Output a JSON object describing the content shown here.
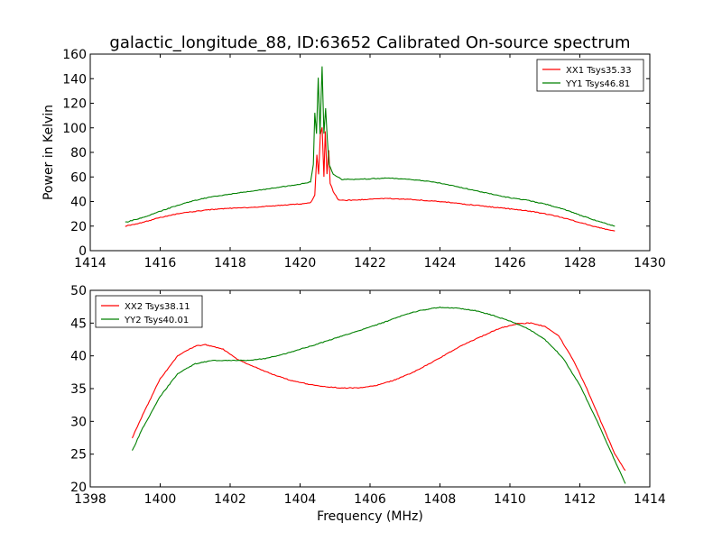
{
  "figure": {
    "title": "galactic_longitude_88, ID:63652 Calibrated On-source spectrum",
    "xlabel": "Frequency (MHz)"
  },
  "chart_data": [
    {
      "type": "line",
      "name": "top",
      "ylabel": "Power in Kelvin",
      "xlim": [
        1414,
        1430
      ],
      "ylim": [
        0,
        160
      ],
      "xticks": [
        1414,
        1416,
        1418,
        1420,
        1422,
        1424,
        1426,
        1428,
        1430
      ],
      "yticks": [
        0,
        20,
        40,
        60,
        80,
        100,
        120,
        140,
        160
      ],
      "legend": "top-right",
      "series": [
        {
          "name": "XX1 Tsys35.33",
          "color": "#ff0000",
          "points": [
            [
              1415.0,
              20
            ],
            [
              1415.5,
              23
            ],
            [
              1416.0,
              27
            ],
            [
              1416.5,
              30
            ],
            [
              1417.0,
              32
            ],
            [
              1417.5,
              33.5
            ],
            [
              1418.0,
              34.5
            ],
            [
              1418.5,
              35
            ],
            [
              1419.0,
              36
            ],
            [
              1419.5,
              37
            ],
            [
              1420.0,
              38
            ],
            [
              1420.3,
              39
            ],
            [
              1420.42,
              45
            ],
            [
              1420.48,
              78
            ],
            [
              1420.53,
              62
            ],
            [
              1420.58,
              95
            ],
            [
              1420.63,
              100
            ],
            [
              1420.68,
              60
            ],
            [
              1420.72,
              97
            ],
            [
              1420.77,
              62
            ],
            [
              1420.82,
              82
            ],
            [
              1420.86,
              55
            ],
            [
              1420.95,
              48
            ],
            [
              1421.1,
              41
            ],
            [
              1421.5,
              41
            ],
            [
              1422.0,
              42
            ],
            [
              1422.5,
              42.5
            ],
            [
              1423.0,
              42
            ],
            [
              1423.5,
              41
            ],
            [
              1424.0,
              40
            ],
            [
              1424.5,
              38.5
            ],
            [
              1425.0,
              37
            ],
            [
              1425.5,
              35.5
            ],
            [
              1426.0,
              34
            ],
            [
              1426.5,
              32.5
            ],
            [
              1427.0,
              30
            ],
            [
              1427.5,
              27
            ],
            [
              1428.0,
              23
            ],
            [
              1428.5,
              19
            ],
            [
              1429.0,
              16
            ]
          ]
        },
        {
          "name": "YY1 Tsys46.81",
          "color": "#008000",
          "points": [
            [
              1415.0,
              23
            ],
            [
              1415.5,
              27
            ],
            [
              1416.0,
              32
            ],
            [
              1416.5,
              37
            ],
            [
              1417.0,
              41
            ],
            [
              1417.5,
              44
            ],
            [
              1418.0,
              46
            ],
            [
              1418.5,
              48
            ],
            [
              1419.0,
              50
            ],
            [
              1419.5,
              52
            ],
            [
              1420.0,
              54
            ],
            [
              1420.3,
              56
            ],
            [
              1420.38,
              70
            ],
            [
              1420.42,
              112
            ],
            [
              1420.47,
              95
            ],
            [
              1420.52,
              141
            ],
            [
              1420.57,
              95
            ],
            [
              1420.63,
              150
            ],
            [
              1420.68,
              95
            ],
            [
              1420.73,
              116
            ],
            [
              1420.78,
              90
            ],
            [
              1420.83,
              70
            ],
            [
              1420.95,
              62
            ],
            [
              1421.2,
              58
            ],
            [
              1421.5,
              58
            ],
            [
              1422.0,
              58.5
            ],
            [
              1422.5,
              59
            ],
            [
              1423.0,
              58.5
            ],
            [
              1423.5,
              57
            ],
            [
              1424.0,
              55
            ],
            [
              1424.5,
              52
            ],
            [
              1425.0,
              49
            ],
            [
              1425.5,
              46
            ],
            [
              1426.0,
              43
            ],
            [
              1426.5,
              41
            ],
            [
              1427.0,
              38
            ],
            [
              1427.5,
              34
            ],
            [
              1428.0,
              29
            ],
            [
              1428.5,
              24
            ],
            [
              1429.0,
              20
            ]
          ]
        }
      ]
    },
    {
      "type": "line",
      "name": "bottom",
      "ylabel": "",
      "xlim": [
        1398,
        1414
      ],
      "ylim": [
        20,
        50
      ],
      "xticks": [
        1398,
        1400,
        1402,
        1404,
        1406,
        1408,
        1410,
        1412,
        1414
      ],
      "yticks": [
        20,
        25,
        30,
        35,
        40,
        45,
        50
      ],
      "legend": "top-left",
      "series": [
        {
          "name": "XX2 Tsys38.11",
          "color": "#ff0000",
          "points": [
            [
              1399.2,
              27.5
            ],
            [
              1399.5,
              31
            ],
            [
              1400.0,
              36.5
            ],
            [
              1400.5,
              40
            ],
            [
              1401.0,
              41.5
            ],
            [
              1401.3,
              41.7
            ],
            [
              1401.8,
              41
            ],
            [
              1402.2,
              39.5
            ],
            [
              1402.7,
              38.3
            ],
            [
              1403.2,
              37.2
            ],
            [
              1403.7,
              36.3
            ],
            [
              1404.2,
              35.7
            ],
            [
              1404.7,
              35.3
            ],
            [
              1405.2,
              35.1
            ],
            [
              1405.7,
              35.1
            ],
            [
              1406.2,
              35.5
            ],
            [
              1406.7,
              36.3
            ],
            [
              1407.2,
              37.4
            ],
            [
              1407.7,
              38.8
            ],
            [
              1408.2,
              40.3
            ],
            [
              1408.7,
              41.8
            ],
            [
              1409.2,
              43
            ],
            [
              1409.7,
              44.2
            ],
            [
              1410.2,
              44.9
            ],
            [
              1410.6,
              45
            ],
            [
              1411.0,
              44.5
            ],
            [
              1411.4,
              43
            ],
            [
              1411.8,
              39.5
            ],
            [
              1412.2,
              35
            ],
            [
              1412.6,
              30
            ],
            [
              1413.0,
              25
            ],
            [
              1413.3,
              22.5
            ]
          ]
        },
        {
          "name": "YY2 Tsys40.01",
          "color": "#008000",
          "points": [
            [
              1399.2,
              25.5
            ],
            [
              1399.5,
              29
            ],
            [
              1400.0,
              33.8
            ],
            [
              1400.5,
              37.3
            ],
            [
              1401.0,
              38.8
            ],
            [
              1401.5,
              39.3
            ],
            [
              1402.0,
              39.3
            ],
            [
              1402.5,
              39.3
            ],
            [
              1403.0,
              39.6
            ],
            [
              1403.5,
              40.2
            ],
            [
              1404.0,
              41
            ],
            [
              1404.5,
              41.8
            ],
            [
              1405.0,
              42.7
            ],
            [
              1405.5,
              43.5
            ],
            [
              1406.0,
              44.4
            ],
            [
              1406.5,
              45.3
            ],
            [
              1407.0,
              46.3
            ],
            [
              1407.5,
              47
            ],
            [
              1408.0,
              47.4
            ],
            [
              1408.5,
              47.3
            ],
            [
              1409.0,
              46.9
            ],
            [
              1409.5,
              46.2
            ],
            [
              1410.0,
              45.3
            ],
            [
              1410.5,
              44.2
            ],
            [
              1411.0,
              42.5
            ],
            [
              1411.5,
              39.8
            ],
            [
              1412.0,
              35.5
            ],
            [
              1412.5,
              30
            ],
            [
              1413.0,
              24
            ],
            [
              1413.3,
              20.5
            ]
          ]
        }
      ]
    }
  ]
}
